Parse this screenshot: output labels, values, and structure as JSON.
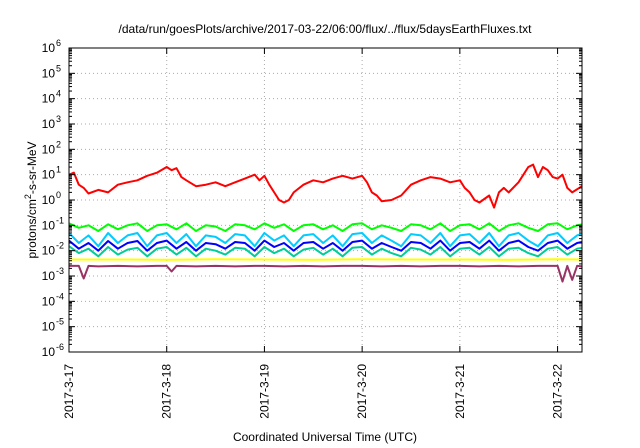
{
  "chart_data": {
    "type": "line",
    "title": "/data/run/goesPlots/archive/2017-03-22/06:00/flux/../flux/5daysEarthFluxes.txt",
    "xlabel": "Coordinated Universal Time (UTC)",
    "ylabel": {
      "pre": "protons/cm",
      "sup": "2",
      "post": "-s-sr-MeV"
    },
    "xlim": [
      0,
      5.25
    ],
    "ylim_log10": [
      -6,
      6
    ],
    "yscale": "log",
    "grid": true,
    "x_ticks": [
      {
        "x": 0,
        "label": "2017-3-17"
      },
      {
        "x": 1,
        "label": "2017-3-18"
      },
      {
        "x": 2,
        "label": "2017-3-19"
      },
      {
        "x": 3,
        "label": "2017-3-20"
      },
      {
        "x": 4,
        "label": "2017-3-21"
      },
      {
        "x": 5,
        "label": "2017-3-22"
      }
    ],
    "y_ticks": [
      {
        "exp": 6,
        "base": "10",
        "sup": "6"
      },
      {
        "exp": 5,
        "base": "10",
        "sup": "5"
      },
      {
        "exp": 4,
        "base": "10",
        "sup": "4"
      },
      {
        "exp": 3,
        "base": "10",
        "sup": "3"
      },
      {
        "exp": 2,
        "base": "10",
        "sup": "2"
      },
      {
        "exp": 1,
        "base": "10",
        "sup": "1"
      },
      {
        "exp": 0,
        "base": "10",
        "sup": "0"
      },
      {
        "exp": -1,
        "base": "10",
        "sup": "-1"
      },
      {
        "exp": -2,
        "base": "10",
        "sup": "-2"
      },
      {
        "exp": -3,
        "base": "10",
        "sup": "-3"
      },
      {
        "exp": -4,
        "base": "10",
        "sup": "-4"
      },
      {
        "exp": -5,
        "base": "10",
        "sup": "-5"
      },
      {
        "exp": -6,
        "base": "10",
        "sup": "-6"
      }
    ],
    "series": [
      {
        "color": "#ff0000",
        "x": [
          0,
          0.05,
          0.1,
          0.15,
          0.2,
          0.3,
          0.4,
          0.5,
          0.6,
          0.7,
          0.8,
          0.9,
          1.0,
          1.05,
          1.1,
          1.15,
          1.2,
          1.3,
          1.4,
          1.5,
          1.6,
          1.7,
          1.8,
          1.9,
          1.95,
          2.0,
          2.05,
          2.1,
          2.15,
          2.2,
          2.25,
          2.3,
          2.4,
          2.5,
          2.6,
          2.7,
          2.8,
          2.9,
          3.0,
          3.05,
          3.1,
          3.15,
          3.2,
          3.3,
          3.4,
          3.5,
          3.6,
          3.7,
          3.8,
          3.9,
          4.0,
          4.05,
          4.1,
          4.15,
          4.2,
          4.3,
          4.35,
          4.4,
          4.45,
          4.5,
          4.6,
          4.65,
          4.7,
          4.75,
          4.8,
          4.85,
          4.9,
          4.95,
          5.0,
          5.05,
          5.1,
          5.15,
          5.25
        ],
        "y": [
          10,
          12,
          4,
          3,
          1.8,
          2.5,
          2,
          4,
          5,
          6,
          9,
          12,
          20,
          15,
          18,
          8,
          6,
          3.5,
          4,
          5,
          3.5,
          5,
          7,
          10,
          6,
          9,
          4,
          2,
          1,
          0.8,
          1,
          2,
          4,
          6,
          5,
          7,
          9,
          7,
          9,
          5,
          2,
          1.5,
          0.9,
          1,
          1.5,
          4,
          6,
          8,
          7,
          5,
          6,
          3,
          2,
          1,
          0.8,
          1.5,
          0.5,
          2,
          3,
          2,
          5,
          10,
          20,
          25,
          8,
          20,
          15,
          8,
          7,
          10,
          3,
          2,
          3.5
        ]
      },
      {
        "color": "#00ff00",
        "x": [
          0,
          0.1,
          0.2,
          0.3,
          0.4,
          0.5,
          0.6,
          0.7,
          0.8,
          0.9,
          1.0,
          1.1,
          1.2,
          1.3,
          1.4,
          1.5,
          1.6,
          1.7,
          1.8,
          1.9,
          2.0,
          2.1,
          2.2,
          2.3,
          2.4,
          2.5,
          2.6,
          2.7,
          2.8,
          2.9,
          3.0,
          3.1,
          3.2,
          3.3,
          3.4,
          3.5,
          3.6,
          3.7,
          3.8,
          3.9,
          4.0,
          4.1,
          4.2,
          4.3,
          4.4,
          4.5,
          4.6,
          4.7,
          4.8,
          4.9,
          5.0,
          5.1,
          5.2,
          5.25
        ],
        "y": [
          0.12,
          0.08,
          0.1,
          0.06,
          0.11,
          0.07,
          0.1,
          0.12,
          0.06,
          0.1,
          0.11,
          0.07,
          0.12,
          0.06,
          0.1,
          0.09,
          0.06,
          0.11,
          0.1,
          0.07,
          0.12,
          0.08,
          0.11,
          0.06,
          0.1,
          0.11,
          0.07,
          0.1,
          0.06,
          0.11,
          0.12,
          0.07,
          0.1,
          0.08,
          0.06,
          0.11,
          0.1,
          0.07,
          0.12,
          0.06,
          0.1,
          0.11,
          0.07,
          0.12,
          0.06,
          0.1,
          0.12,
          0.08,
          0.06,
          0.11,
          0.12,
          0.07,
          0.1,
          0.11
        ]
      },
      {
        "color": "#00cc99",
        "x": [
          0,
          0.1,
          0.2,
          0.3,
          0.4,
          0.5,
          0.6,
          0.7,
          0.8,
          0.9,
          1.0,
          1.1,
          1.2,
          1.3,
          1.4,
          1.5,
          1.6,
          1.7,
          1.8,
          1.9,
          2.0,
          2.1,
          2.2,
          2.3,
          2.4,
          2.5,
          2.6,
          2.7,
          2.8,
          2.9,
          3.0,
          3.1,
          3.2,
          3.3,
          3.4,
          3.5,
          3.6,
          3.7,
          3.8,
          3.9,
          4.0,
          4.1,
          4.2,
          4.3,
          4.4,
          4.5,
          4.6,
          4.7,
          4.8,
          4.9,
          5.0,
          5.1,
          5.2,
          5.25
        ],
        "y": [
          0.015,
          0.008,
          0.012,
          0.006,
          0.014,
          0.007,
          0.011,
          0.013,
          0.006,
          0.012,
          0.014,
          0.007,
          0.013,
          0.006,
          0.012,
          0.01,
          0.007,
          0.013,
          0.012,
          0.006,
          0.014,
          0.008,
          0.012,
          0.006,
          0.011,
          0.013,
          0.007,
          0.012,
          0.006,
          0.013,
          0.014,
          0.007,
          0.012,
          0.008,
          0.006,
          0.013,
          0.011,
          0.007,
          0.014,
          0.006,
          0.012,
          0.013,
          0.007,
          0.014,
          0.006,
          0.012,
          0.013,
          0.008,
          0.006,
          0.012,
          0.014,
          0.007,
          0.012,
          0.013
        ]
      },
      {
        "color": "#00ccff",
        "x": [
          0,
          0.1,
          0.2,
          0.3,
          0.4,
          0.5,
          0.6,
          0.7,
          0.8,
          0.9,
          1.0,
          1.1,
          1.2,
          1.3,
          1.4,
          1.5,
          1.6,
          1.7,
          1.8,
          1.9,
          2.0,
          2.1,
          2.2,
          2.3,
          2.4,
          2.5,
          2.6,
          2.7,
          2.8,
          2.9,
          3.0,
          3.1,
          3.2,
          3.3,
          3.4,
          3.5,
          3.6,
          3.7,
          3.8,
          3.9,
          4.0,
          4.1,
          4.2,
          4.3,
          4.4,
          4.5,
          4.6,
          4.7,
          4.8,
          4.9,
          5.0,
          5.1,
          5.2,
          5.25
        ],
        "y": [
          0.05,
          0.02,
          0.04,
          0.015,
          0.05,
          0.02,
          0.04,
          0.05,
          0.015,
          0.04,
          0.05,
          0.02,
          0.045,
          0.015,
          0.04,
          0.035,
          0.02,
          0.045,
          0.04,
          0.015,
          0.05,
          0.025,
          0.04,
          0.015,
          0.04,
          0.045,
          0.02,
          0.04,
          0.015,
          0.045,
          0.05,
          0.02,
          0.04,
          0.025,
          0.015,
          0.045,
          0.04,
          0.02,
          0.05,
          0.015,
          0.04,
          0.045,
          0.02,
          0.05,
          0.015,
          0.04,
          0.05,
          0.025,
          0.015,
          0.04,
          0.05,
          0.02,
          0.04,
          0.045
        ]
      },
      {
        "color": "#0000ff",
        "x": [
          0,
          0.1,
          0.2,
          0.3,
          0.4,
          0.5,
          0.6,
          0.7,
          0.8,
          0.9,
          1.0,
          1.1,
          1.2,
          1.3,
          1.4,
          1.5,
          1.6,
          1.7,
          1.8,
          1.9,
          2.0,
          2.1,
          2.2,
          2.3,
          2.4,
          2.5,
          2.6,
          2.7,
          2.8,
          2.9,
          3.0,
          3.1,
          3.2,
          3.3,
          3.4,
          3.5,
          3.6,
          3.7,
          3.8,
          3.9,
          4.0,
          4.1,
          4.2,
          4.3,
          4.4,
          4.5,
          4.6,
          4.7,
          4.8,
          4.9,
          5.0,
          5.1,
          5.2,
          5.25
        ],
        "y": [
          0.025,
          0.012,
          0.02,
          0.01,
          0.024,
          0.012,
          0.02,
          0.024,
          0.01,
          0.02,
          0.025,
          0.012,
          0.022,
          0.01,
          0.02,
          0.018,
          0.012,
          0.022,
          0.02,
          0.01,
          0.025,
          0.014,
          0.02,
          0.01,
          0.02,
          0.022,
          0.012,
          0.02,
          0.01,
          0.022,
          0.025,
          0.012,
          0.02,
          0.014,
          0.01,
          0.022,
          0.02,
          0.012,
          0.025,
          0.01,
          0.02,
          0.022,
          0.012,
          0.025,
          0.01,
          0.02,
          0.025,
          0.014,
          0.01,
          0.02,
          0.025,
          0.012,
          0.02,
          0.022
        ]
      },
      {
        "color": "#ffff00",
        "x": [
          0,
          0.5,
          1.0,
          1.5,
          2.0,
          2.5,
          3.0,
          3.5,
          4.0,
          4.5,
          5.0,
          5.25
        ],
        "y": [
          0.0045,
          0.0045,
          0.0044,
          0.0046,
          0.0045,
          0.0044,
          0.0046,
          0.0045,
          0.0045,
          0.0044,
          0.0046,
          0.0045
        ]
      },
      {
        "color": "#993366",
        "x": [
          0,
          0.1,
          0.15,
          0.2,
          0.3,
          0.5,
          0.7,
          0.9,
          1.0,
          1.05,
          1.1,
          1.3,
          1.5,
          1.7,
          1.9,
          2.0,
          2.2,
          2.4,
          2.6,
          2.8,
          3.0,
          3.2,
          3.4,
          3.6,
          3.8,
          4.0,
          4.2,
          4.4,
          4.6,
          4.8,
          5.0,
          5.05,
          5.1,
          5.15,
          5.2,
          5.25
        ],
        "y": [
          0.0025,
          0.0025,
          0.0008,
          0.0025,
          0.0024,
          0.0025,
          0.0024,
          0.0025,
          0.0025,
          0.0015,
          0.0025,
          0.0024,
          0.0025,
          0.0024,
          0.0025,
          0.0025,
          0.0024,
          0.0025,
          0.0024,
          0.0025,
          0.0025,
          0.0024,
          0.0025,
          0.0024,
          0.0025,
          0.0025,
          0.0024,
          0.0025,
          0.0024,
          0.0025,
          0.0025,
          0.0006,
          0.0025,
          0.0007,
          0.0025,
          0.0024
        ]
      }
    ]
  }
}
